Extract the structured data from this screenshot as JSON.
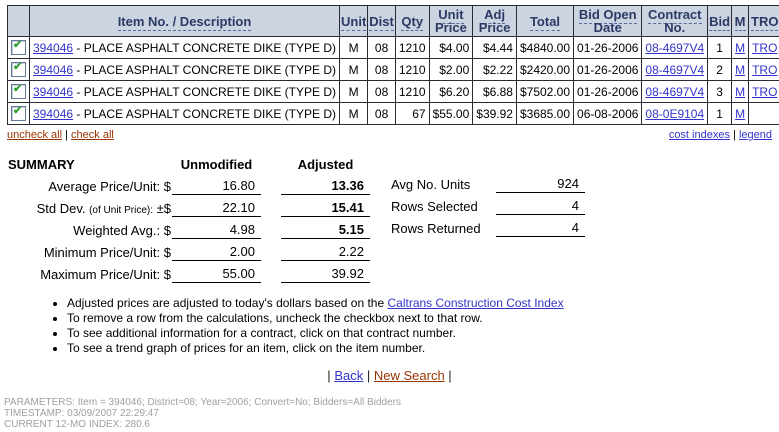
{
  "colors": {
    "header_bg": "#ccd4e2",
    "header_text": "#2b3a64",
    "link_blue": "#3333cc",
    "link_rust": "#993300",
    "check_green": "#2f9e2f",
    "footer_gray": "#a0a0a0"
  },
  "icons": {
    "check": "✔"
  },
  "table": {
    "headers": [
      "",
      "Item No. / Description",
      "Unit",
      "Dist",
      "Qty",
      "Unit Price",
      "Adj Price",
      "Total",
      "Bid Open Date",
      "Contract No.",
      "Bid",
      "M",
      "TRO"
    ],
    "rows": [
      {
        "checked": true,
        "item_no": "394046",
        "desc": "- PLACE ASPHALT CONCRETE DIKE (TYPE D)",
        "unit": "M",
        "dist": "08",
        "qty": "1210",
        "unit_price": "$4.00",
        "adj_price": "$4.44",
        "total": "$4840.00",
        "bid_open": "01-26-2006",
        "contract": "08-4697V4",
        "bid": "1",
        "m": "M",
        "tro": "TRO"
      },
      {
        "checked": true,
        "item_no": "394046",
        "desc": "- PLACE ASPHALT CONCRETE DIKE (TYPE D)",
        "unit": "M",
        "dist": "08",
        "qty": "1210",
        "unit_price": "$2.00",
        "adj_price": "$2.22",
        "total": "$2420.00",
        "bid_open": "01-26-2006",
        "contract": "08-4697V4",
        "bid": "2",
        "m": "M",
        "tro": "TRO"
      },
      {
        "checked": true,
        "item_no": "394046",
        "desc": "- PLACE ASPHALT CONCRETE DIKE (TYPE D)",
        "unit": "M",
        "dist": "08",
        "qty": "1210",
        "unit_price": "$6.20",
        "adj_price": "$6.88",
        "total": "$7502.00",
        "bid_open": "01-26-2006",
        "contract": "08-4697V4",
        "bid": "3",
        "m": "M",
        "tro": "TRO"
      },
      {
        "checked": true,
        "item_no": "394046",
        "desc": "- PLACE ASPHALT CONCRETE DIKE (TYPE D)",
        "unit": "M",
        "dist": "08",
        "qty": "67",
        "unit_price": "$55.00",
        "adj_price": "$39.92",
        "total": "$3685.00",
        "bid_open": "06-08-2006",
        "contract": "08-0E9104",
        "bid": "1",
        "m": "M",
        "tro": ""
      }
    ]
  },
  "links": {
    "uncheck_all": "uncheck all",
    "check_all": "check all",
    "cost_indexes": "cost indexes",
    "legend": "legend",
    "sep": "|"
  },
  "summary": {
    "title": "SUMMARY",
    "col_unmodified": "Unmodified",
    "col_adjusted": "Adjusted",
    "rows": [
      {
        "label": "Average Price/Unit:",
        "small": "",
        "cur": "$",
        "unmod": "16.80",
        "adj": "13.36"
      },
      {
        "label": "Std Dev.",
        "small": "(of Unit Price):",
        "cur": "±$",
        "unmod": "22.10",
        "adj": "15.41"
      },
      {
        "label": "Weighted Avg.:",
        "small": "",
        "cur": "$",
        "unmod": "4.98",
        "adj": "5.15"
      },
      {
        "label": "Minimum Price/Unit:",
        "small": "",
        "cur": "$",
        "unmod": "2.00",
        "adj": "2.22"
      },
      {
        "label": "Maximum Price/Unit:",
        "small": "",
        "cur": "$",
        "unmod": "55.00",
        "adj": "39.92"
      }
    ],
    "stats": [
      {
        "label": "Avg No. Units",
        "value": "924"
      },
      {
        "label": "Rows Selected",
        "value": "4"
      },
      {
        "label": "Rows Returned",
        "value": "4"
      }
    ]
  },
  "notes": [
    {
      "text": "Adjusted prices are adjusted to today's dollars based on the ",
      "link": "Caltrans Construction Cost Index"
    },
    {
      "text": "To remove a row from the calculations, uncheck the checkbox next to that row.",
      "link": ""
    },
    {
      "text": "To see additional information for a contract, click on that contract number.",
      "link": ""
    },
    {
      "text": "To see a trend graph of prices for an item, click on the item number.",
      "link": ""
    }
  ],
  "nav": {
    "pipe": "|",
    "back": "Back",
    "new_search": "New Search"
  },
  "footer": {
    "parameters": "PARAMETERS: Item = 394046; District=08; Year=2006; Convert=No; Bidders=All Bidders",
    "timestamp": "TIMESTAMP: 03/09/2007 22:29:47",
    "index": "CURRENT 12-MO INDEX: 280.6"
  }
}
